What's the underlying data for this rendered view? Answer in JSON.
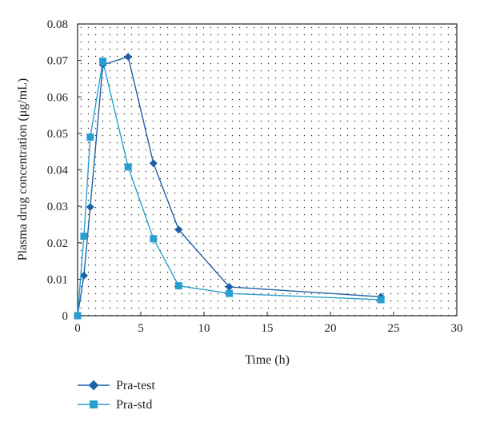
{
  "chart_data": {
    "type": "line",
    "xlabel": "Time (h)",
    "ylabel": "Plasma drug concentration (μg/mL)",
    "xlim": [
      0,
      30
    ],
    "ylim": [
      0,
      0.08
    ],
    "x_ticks": [
      "0",
      "5",
      "10",
      "15",
      "20",
      "25",
      "30"
    ],
    "y_ticks": [
      "0",
      "0.01",
      "0.02",
      "0.03",
      "0.04",
      "0.05",
      "0.06",
      "0.07",
      "0.08"
    ],
    "grid": "dotted",
    "legend_position": "bottom-left",
    "series": [
      {
        "name": "Pra-test",
        "marker": "diamond",
        "color": "#1f5fa8",
        "x": [
          0,
          0.5,
          1,
          2,
          4,
          6,
          8,
          12,
          24
        ],
        "y": [
          0,
          0.011,
          0.0298,
          0.0688,
          0.071,
          0.0418,
          0.0236,
          0.0079,
          0.0052
        ]
      },
      {
        "name": "Pra-std",
        "marker": "square",
        "color": "#2a9fcf",
        "x": [
          0,
          0.5,
          1,
          2,
          4,
          6,
          8,
          12,
          24
        ],
        "y": [
          0,
          0.0218,
          0.049,
          0.0698,
          0.0408,
          0.0211,
          0.0082,
          0.0061,
          0.0044
        ]
      }
    ]
  }
}
